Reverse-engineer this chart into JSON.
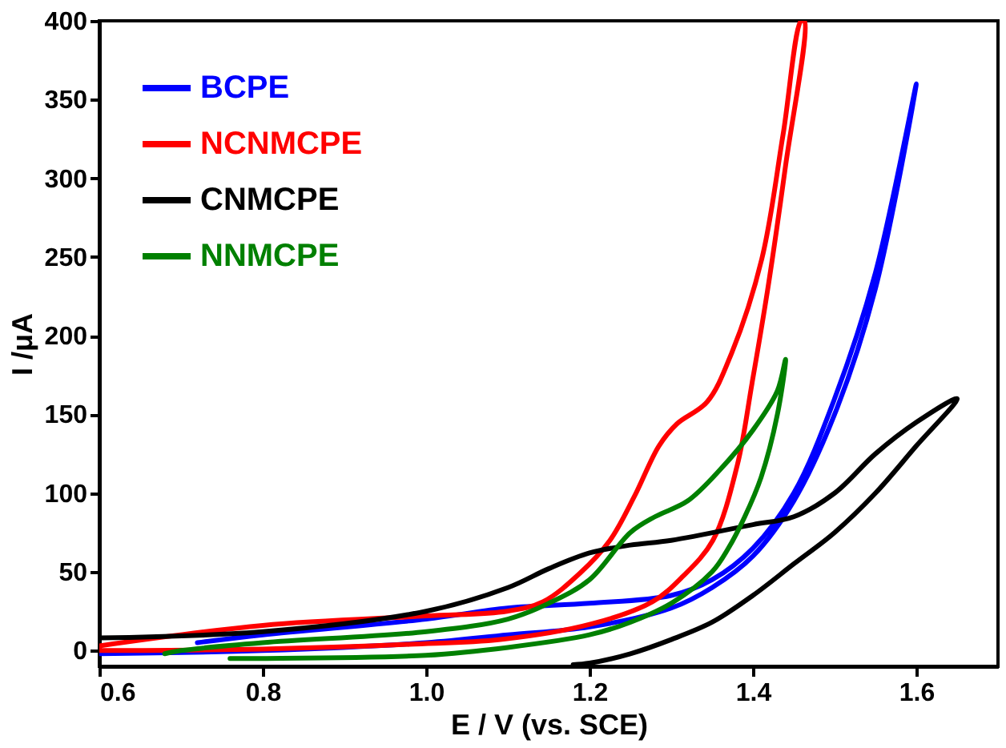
{
  "chart_data": {
    "type": "line",
    "xlabel": "E / V (vs. SCE)",
    "ylabel": "I /μA",
    "xlim": [
      0.6,
      1.7
    ],
    "ylim": [
      -10,
      400
    ],
    "xticks": [
      {
        "value": 0.6,
        "label": "0.6"
      },
      {
        "value": 0.8,
        "label": "0.8"
      },
      {
        "value": 1.0,
        "label": "1.0"
      },
      {
        "value": 1.2,
        "label": "1.2"
      },
      {
        "value": 1.4,
        "label": "1.4"
      },
      {
        "value": 1.6,
        "label": "1.6"
      }
    ],
    "yticks": [
      0,
      50,
      100,
      150,
      200,
      250,
      300,
      350,
      400
    ],
    "grid": false,
    "legend": "top left",
    "marker": "none",
    "line_style": "solid",
    "series": [
      {
        "name": "BCPE",
        "color": "#0000ff",
        "x": [
          0.6,
          0.8,
          1.0,
          1.1,
          1.2,
          1.3,
          1.35,
          1.4,
          1.45,
          1.5,
          1.55,
          1.6,
          1.55,
          1.5,
          1.45,
          1.4,
          1.35,
          1.3,
          1.2,
          1.1,
          1.0,
          0.8,
          0.72
        ],
        "values": [
          -2,
          0,
          5,
          10,
          15,
          27,
          40,
          60,
          95,
          150,
          230,
          360,
          240,
          160,
          100,
          65,
          45,
          35,
          30,
          27,
          20,
          10,
          5
        ]
      },
      {
        "name": "NCNMCPE",
        "color": "#ff0000",
        "x": [
          0.6,
          0.8,
          1.0,
          1.099,
          1.143,
          1.188,
          1.225,
          1.255,
          1.285,
          1.307,
          1.344,
          1.374,
          1.411,
          1.437,
          1.459,
          1.463,
          1.44,
          1.418,
          1.399,
          1.381,
          1.351,
          1.314,
          1.277,
          1.203,
          1.091,
          0.98,
          0.8,
          0.6
        ],
        "values": [
          3,
          16,
          22,
          25,
          31,
          49,
          70,
          98,
          130,
          144,
          158,
          189,
          249,
          328,
          400,
          400,
          308,
          229,
          170,
          118,
          70,
          47,
          31,
          17,
          7,
          4,
          1,
          0
        ]
      },
      {
        "name": "CNMCPE",
        "color": "#000000",
        "x": [
          0.6,
          0.8,
          1.0,
          1.1,
          1.15,
          1.2,
          1.25,
          1.3,
          1.4,
          1.45,
          1.5,
          1.55,
          1.6,
          1.65,
          1.6,
          1.55,
          1.5,
          1.45,
          1.4,
          1.35,
          1.3,
          1.25,
          1.2,
          1.18
        ],
        "values": [
          8,
          12,
          25,
          40,
          52,
          62,
          67,
          70,
          80,
          85,
          100,
          125,
          145,
          160,
          130,
          100,
          75,
          55,
          35,
          18,
          7,
          -2,
          -8,
          -9
        ]
      },
      {
        "name": "NNMCPE",
        "color": "#008000",
        "x": [
          0.68,
          0.7,
          0.8,
          1.0,
          1.1,
          1.15,
          1.2,
          1.25,
          1.28,
          1.32,
          1.36,
          1.4,
          1.43,
          1.44,
          1.43,
          1.41,
          1.39,
          1.37,
          1.35,
          1.3,
          1.25,
          1.2,
          1.1,
          1.0,
          0.8,
          0.76
        ],
        "values": [
          -2,
          0,
          5,
          12,
          20,
          30,
          45,
          75,
          85,
          95,
          115,
          140,
          165,
          185,
          150,
          110,
          85,
          65,
          50,
          30,
          18,
          10,
          2,
          -3,
          -5,
          -5
        ]
      }
    ]
  }
}
